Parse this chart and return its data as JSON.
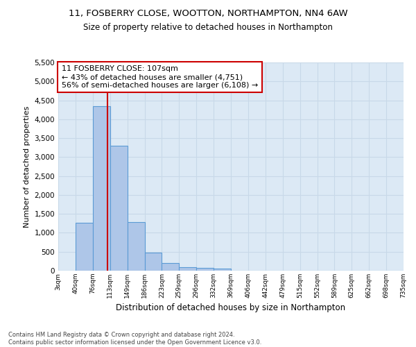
{
  "title1": "11, FOSBERRY CLOSE, WOOTTON, NORTHAMPTON, NN4 6AW",
  "title2": "Size of property relative to detached houses in Northampton",
  "xlabel": "Distribution of detached houses by size in Northampton",
  "ylabel": "Number of detached properties",
  "footnote": "Contains HM Land Registry data © Crown copyright and database right 2024.\nContains public sector information licensed under the Open Government Licence v3.0.",
  "bin_labels": [
    "3sqm",
    "40sqm",
    "76sqm",
    "113sqm",
    "149sqm",
    "186sqm",
    "223sqm",
    "259sqm",
    "296sqm",
    "332sqm",
    "369sqm",
    "406sqm",
    "442sqm",
    "479sqm",
    "515sqm",
    "552sqm",
    "589sqm",
    "625sqm",
    "662sqm",
    "698sqm",
    "735sqm"
  ],
  "bar_values": [
    0,
    1270,
    4340,
    3300,
    1280,
    480,
    200,
    100,
    70,
    50,
    0,
    0,
    0,
    0,
    0,
    0,
    0,
    0,
    0,
    0
  ],
  "bar_color": "#aec6e8",
  "bar_edge_color": "#5b9bd5",
  "vline_color": "#cc0000",
  "annotation_text": "11 FOSBERRY CLOSE: 107sqm\n← 43% of detached houses are smaller (4,751)\n56% of semi-detached houses are larger (6,108) →",
  "annotation_box_color": "#ffffff",
  "annotation_box_edge": "#cc0000",
  "ylim": [
    0,
    5500
  ],
  "yticks": [
    0,
    500,
    1000,
    1500,
    2000,
    2500,
    3000,
    3500,
    4000,
    4500,
    5000,
    5500
  ],
  "grid_color": "#c8d8e8",
  "background_color": "#dce9f5",
  "bin_starts": [
    3,
    40,
    76,
    113,
    149,
    186,
    223,
    259,
    296,
    332,
    369,
    406,
    442,
    479,
    515,
    552,
    589,
    625,
    662,
    698
  ],
  "vline_sqm": 107
}
